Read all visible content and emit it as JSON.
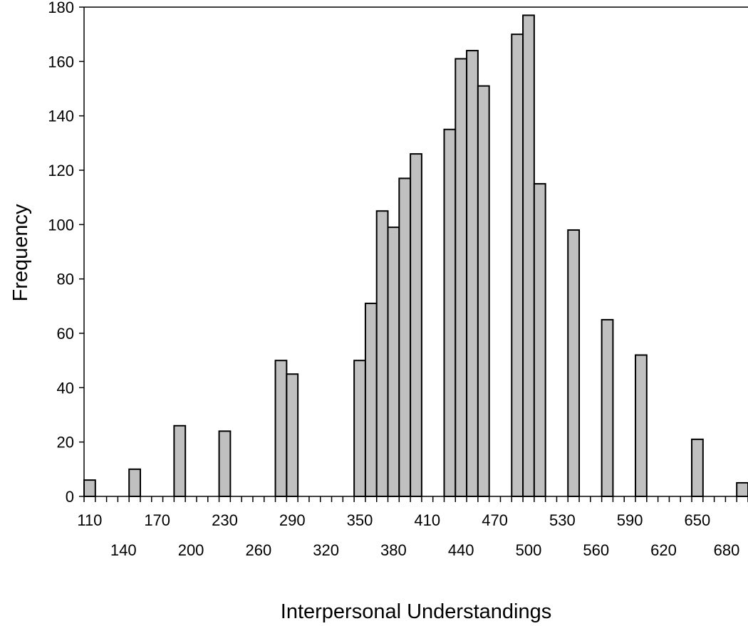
{
  "chart_data": {
    "type": "bar",
    "title": "",
    "xlabel": "Interpersonal Understandings",
    "ylabel": "Frequency",
    "ylim": [
      0,
      180
    ],
    "y_ticks": [
      0,
      20,
      40,
      60,
      80,
      100,
      120,
      140,
      160,
      180
    ],
    "x_ticks_upper": [
      "110",
      "170",
      "230",
      "290",
      "350",
      "410",
      "470",
      "530",
      "590",
      "650"
    ],
    "x_ticks_lower": [
      "140",
      "200",
      "260",
      "320",
      "380",
      "440",
      "500",
      "560",
      "620",
      "680"
    ],
    "bin_width": 10,
    "bins_start": [
      110,
      120,
      130,
      140,
      150,
      160,
      170,
      180,
      190,
      200,
      210,
      220,
      230,
      240,
      250,
      260,
      270,
      280,
      290,
      300,
      310,
      320,
      330,
      340,
      350,
      360,
      370,
      380,
      390,
      400,
      410,
      420,
      430,
      440,
      450,
      460,
      470,
      480,
      490,
      500,
      510,
      520,
      530,
      540,
      550,
      560,
      570,
      580,
      590,
      600,
      610,
      620,
      630,
      640,
      650,
      660,
      670,
      680,
      690
    ],
    "values": [
      6,
      0,
      0,
      0,
      10,
      0,
      0,
      0,
      26,
      0,
      0,
      0,
      24,
      0,
      0,
      0,
      0,
      50,
      45,
      0,
      0,
      0,
      0,
      0,
      50,
      71,
      105,
      99,
      117,
      126,
      0,
      0,
      135,
      161,
      164,
      151,
      0,
      0,
      170,
      177,
      115,
      0,
      0,
      98,
      0,
      0,
      65,
      0,
      0,
      52,
      0,
      0,
      0,
      0,
      21,
      0,
      0,
      0,
      5
    ],
    "bar_color": "#c0c0c0",
    "edge_color": "#000000",
    "grid": false,
    "legend": "none"
  }
}
